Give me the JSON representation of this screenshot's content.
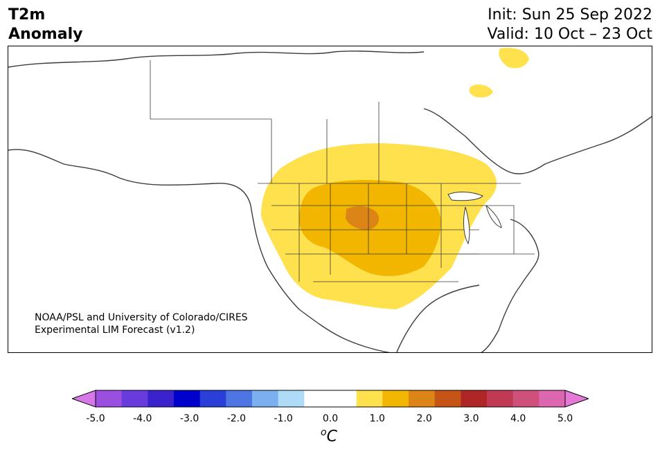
{
  "header": {
    "title_line1": "T2m",
    "title_line2": "Anomaly",
    "init": "Init: Sun 25 Sep 2022",
    "valid": "Valid: 10 Oct – 23 Oct"
  },
  "map": {
    "region": "North America",
    "credit_line1": "NOAA/PSL and University of Colorado/CIRES",
    "credit_line2": "Experimental LIM Forecast (v1.2)",
    "anomaly_regions": [
      {
        "area": "Central US / Northern Plains",
        "level_range": "0.5 to 1.0"
      },
      {
        "area": "Nebraska / Dakotas / Colorado core",
        "level_range": "1.0 to 1.5"
      },
      {
        "area": "South Dakota / Nebraska maximum",
        "level_range": "1.5 to 2.0"
      },
      {
        "area": "Baffin Island / northern Canada",
        "level_range": "0.5 to 1.0"
      }
    ]
  },
  "colorbar": {
    "unit": "C",
    "unit_superscript": "o",
    "tick_labels": [
      "-5.0",
      "-4.0",
      "-3.0",
      "-2.0",
      "-1.0",
      "0.0",
      "1.0",
      "2.0",
      "3.0",
      "4.0",
      "5.0"
    ],
    "colors": [
      "#9b4fe0",
      "#6a3bdc",
      "#3a22cc",
      "#0000cd",
      "#2a3ed8",
      "#4f74e4",
      "#7aaff0",
      "#aedbf8",
      "#ffffff",
      "#ffffff",
      "#ffe14d",
      "#f2b600",
      "#dc8516",
      "#c65416",
      "#b02626",
      "#c03a56",
      "#d0507c",
      "#dd66b0"
    ],
    "extend_low_color": "#d778e9",
    "extend_high_color": "#e57ad6"
  }
}
